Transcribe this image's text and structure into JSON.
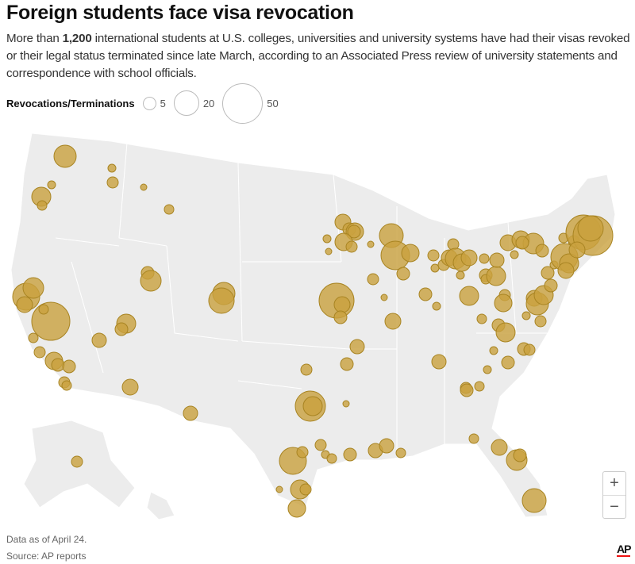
{
  "header": {
    "title": "Foreign students face visa revocation",
    "dek_pre": "More than ",
    "dek_bold": "1,200",
    "dek_post": " international students at U.S. colleges, universities and university systems have had their visas revoked or their legal status terminated since late March, according to an Associated Press review of university statements and correspondence with school officials."
  },
  "legend": {
    "title": "Revocations/Terminations",
    "sizes": [
      "5",
      "20",
      "50"
    ]
  },
  "map": {
    "land_color": "#ececec",
    "bubble_color": "#c9a13e",
    "bubble_stroke": "#a88422"
  },
  "controls": {
    "zoom_in": "+",
    "zoom_out": "−"
  },
  "footer": {
    "note": "Data as of April 24.",
    "source": "Source: AP reports",
    "logo": "AP"
  }
}
